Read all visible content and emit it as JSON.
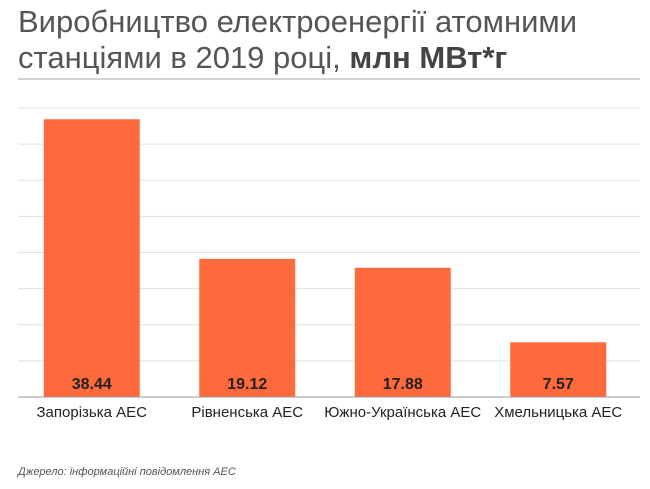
{
  "title": {
    "main": "Виробництво електроенергії атомними станціями в 2019 році,",
    "unit": "млн МВт*г"
  },
  "source": "Джерело: інформаційні повідомлення АЕС",
  "colors": {
    "bar": "#ff6a3d",
    "grid": "#e0e0e0",
    "axis": "#999999",
    "text": "#222222"
  },
  "chart_data": {
    "type": "bar",
    "categories": [
      "Запорізька АЕС",
      "Рівненська АЕС",
      "Южно-Українська АЕС",
      "Хмельницька АЕС"
    ],
    "values": [
      38.44,
      19.12,
      17.88,
      7.57
    ],
    "value_labels": [
      "38.44",
      "19.12",
      "17.88",
      "7.57"
    ],
    "ylim": [
      0,
      40
    ],
    "grid": true,
    "tick_labels_visible": false,
    "data_labels_position": "inside-bottom"
  }
}
